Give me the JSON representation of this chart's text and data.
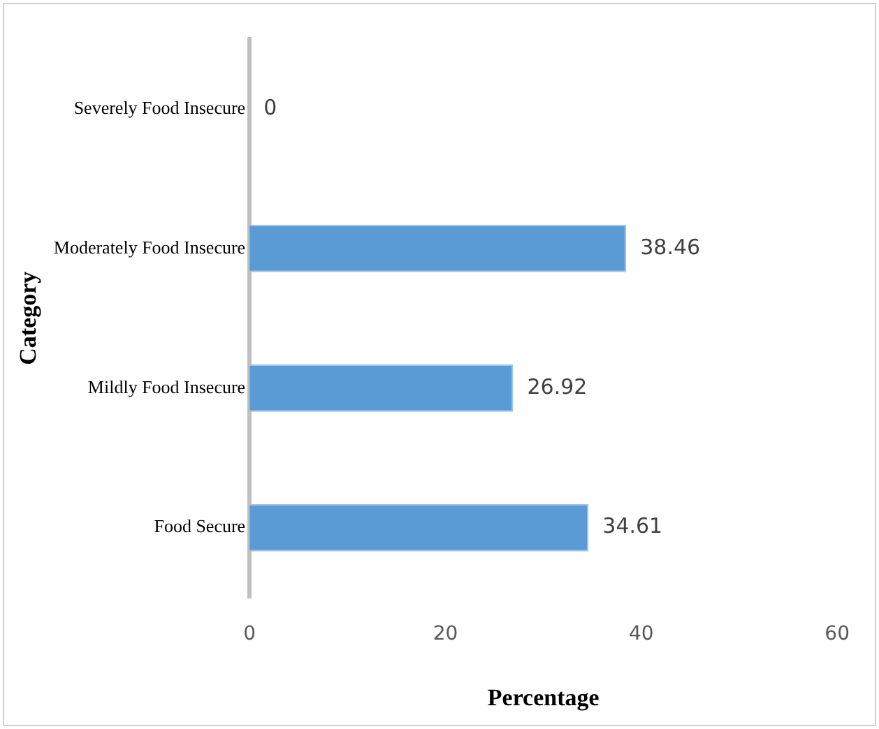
{
  "chart_data": {
    "type": "bar",
    "orientation": "horizontal",
    "xlabel": "Percentage",
    "ylabel": "Category",
    "categories": [
      "Severely Food Insecure",
      "Moderately Food Insecure",
      "Mildly Food Insecure",
      "Food Secure"
    ],
    "values": [
      0,
      38.46,
      26.92,
      34.61
    ],
    "color": "#5b9bd5",
    "xlim": [
      0,
      60
    ],
    "xticks": [
      0,
      20,
      40,
      60
    ],
    "grid": false,
    "legend": false,
    "data_labels": true
  }
}
